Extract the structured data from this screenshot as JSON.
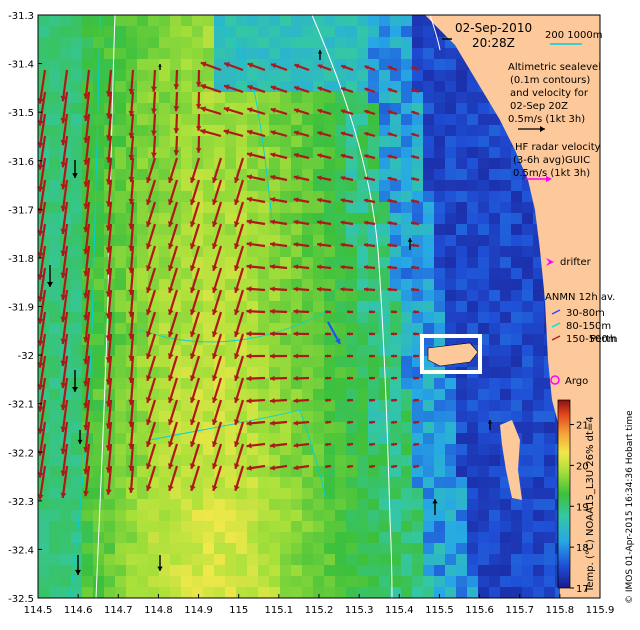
{
  "map": {
    "title_date": "02-Sep-2010",
    "title_time": "20:28Z",
    "scale_label": "200  1000m",
    "altimetry_lines": [
      "Altimetric sealevel",
      "(0.1m contours)",
      "and velocity for",
      "02-Sep 20Z",
      "0.5m/s (1kt 3h)"
    ],
    "hf_radar_lines": [
      "HF radar velocity",
      "(3-6h avg)GUIC",
      "0.5m/s (1kt 3h)"
    ],
    "drifter_label": "drifter",
    "anmn_title": "ANMN 12h av.",
    "anmn_items": [
      {
        "label": "30-80m",
        "color": "#2050ff"
      },
      {
        "label": "80-150m",
        "color": "#00e0e0"
      },
      {
        "label": "150-500m",
        "color": "#b02020"
      }
    ],
    "place_perth": "Perth",
    "argo_label": "Argo",
    "colorbar_label": "Temp. (°C) NOAA15_L3U 26% dt=4",
    "colorbar_ticks": [
      "17",
      "18",
      "19",
      "20",
      "21"
    ],
    "credit": "© IMOS 01-Apr-2015 16:34:36 Hobart time",
    "y_ticks": [
      "-31.3",
      "-31.4",
      "-31.5",
      "-31.6",
      "-31.7",
      "-31.8",
      "-31.9",
      "-32",
      "-32.1",
      "-32.2",
      "-32.3",
      "-32.4",
      "-32.5"
    ],
    "x_ticks": [
      "114.5",
      "114.6",
      "114.7",
      "114.8",
      "114.9",
      "115",
      "115.1",
      "115.2",
      "115.3",
      "115.4",
      "115.5",
      "115.6",
      "115.7",
      "115.8",
      "115.9"
    ],
    "lon_range": [
      114.5,
      115.9
    ],
    "lat_range": [
      -32.5,
      -31.3
    ],
    "temp_range": [
      17,
      21.6
    ],
    "colors": {
      "land": "#fdc99a",
      "arrow_radar": "#b01818",
      "arrow_altimetry": "#000000",
      "contour": "#ffffff",
      "isobath": "#00d0e0",
      "drifter": "#ff00ff",
      "argo": "#ff00ff"
    }
  }
}
